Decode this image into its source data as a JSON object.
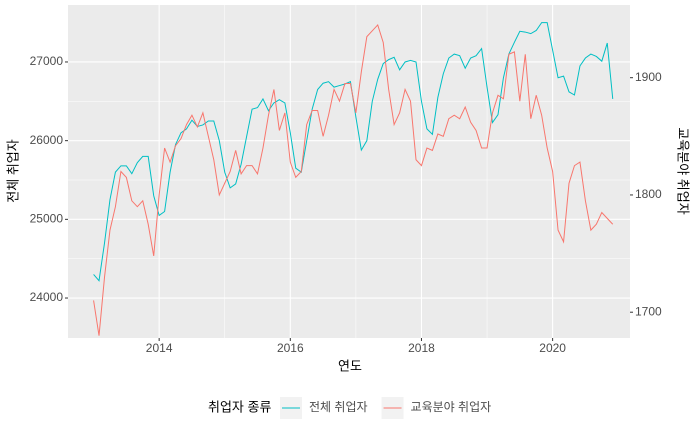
{
  "chart_data": {
    "type": "line",
    "x_label": "연도",
    "y_label": "전체 취업자",
    "y2_label": "교육분야 취업자",
    "legend_title": "취업자 종류",
    "legend": "bottom",
    "grid": true,
    "x": [
      2013,
      2013.083,
      2013.167,
      2013.25,
      2013.333,
      2013.417,
      2013.5,
      2013.583,
      2013.667,
      2013.75,
      2013.833,
      2013.917,
      2014,
      2014.083,
      2014.167,
      2014.25,
      2014.333,
      2014.417,
      2014.5,
      2014.583,
      2014.667,
      2014.75,
      2014.833,
      2014.917,
      2015,
      2015.083,
      2015.167,
      2015.25,
      2015.333,
      2015.417,
      2015.5,
      2015.583,
      2015.667,
      2015.75,
      2015.833,
      2015.917,
      2016,
      2016.083,
      2016.167,
      2016.25,
      2016.333,
      2016.417,
      2016.5,
      2016.583,
      2016.667,
      2016.75,
      2016.833,
      2016.917,
      2017,
      2017.083,
      2017.167,
      2017.25,
      2017.333,
      2017.417,
      2017.5,
      2017.583,
      2017.667,
      2017.75,
      2017.833,
      2017.917,
      2018,
      2018.083,
      2018.167,
      2018.25,
      2018.333,
      2018.417,
      2018.5,
      2018.583,
      2018.667,
      2018.75,
      2018.833,
      2018.917,
      2019,
      2019.083,
      2019.167,
      2019.25,
      2019.333,
      2019.417,
      2019.5,
      2019.583,
      2019.667,
      2019.75,
      2019.833,
      2019.917,
      2020,
      2020.083,
      2020.167,
      2020.25,
      2020.333,
      2020.417,
      2020.5,
      2020.583,
      2020.667,
      2020.75,
      2020.833,
      2020.917
    ],
    "xlim": [
      2012.61,
      2021.18
    ],
    "xticks": [
      2014,
      2016,
      2018,
      2020
    ],
    "ylim": [
      23492,
      27724
    ],
    "yticks": [
      24000,
      25000,
      26000,
      27000
    ],
    "y2lim": [
      1678,
      1962
    ],
    "y2ticks": [
      1700,
      1800,
      1900
    ],
    "series": [
      {
        "name": "전체 취업자",
        "color": "#00BFC4",
        "values": [
          24300,
          24220,
          24700,
          25250,
          25600,
          25680,
          25680,
          25580,
          25720,
          25800,
          25800,
          25300,
          25050,
          25100,
          25600,
          25950,
          26100,
          26150,
          26260,
          26180,
          26200,
          26250,
          26250,
          26000,
          25600,
          25400,
          25450,
          25700,
          26050,
          26400,
          26420,
          26530,
          26380,
          26480,
          26520,
          26480,
          26100,
          25650,
          25600,
          26000,
          26400,
          26650,
          26730,
          26750,
          26680,
          26700,
          26720,
          26750,
          26300,
          25880,
          26000,
          26500,
          26780,
          26980,
          27030,
          27060,
          26900,
          27000,
          27020,
          27000,
          26500,
          26150,
          26080,
          26550,
          26850,
          27050,
          27100,
          27080,
          26920,
          27050,
          27080,
          27170,
          26680,
          26230,
          26330,
          26800,
          27100,
          27250,
          27390,
          27380,
          27360,
          27400,
          27500,
          27500,
          27150,
          26800,
          26820,
          26620,
          26580,
          26950,
          27050,
          27100,
          27070,
          27010,
          27240,
          26530
        ]
      },
      {
        "name": "교육분야 취업자",
        "color": "#F8766D",
        "axis": "y2",
        "values": [
          1710,
          1680,
          1730,
          1770,
          1790,
          1820,
          1815,
          1795,
          1790,
          1795,
          1775,
          1748,
          1800,
          1840,
          1828,
          1842,
          1848,
          1860,
          1868,
          1858,
          1870,
          1850,
          1830,
          1800,
          1810,
          1820,
          1838,
          1818,
          1825,
          1825,
          1818,
          1840,
          1868,
          1890,
          1855,
          1870,
          1828,
          1815,
          1820,
          1860,
          1872,
          1872,
          1850,
          1868,
          1890,
          1880,
          1895,
          1895,
          1870,
          1905,
          1935,
          1940,
          1945,
          1930,
          1890,
          1860,
          1870,
          1890,
          1880,
          1830,
          1825,
          1840,
          1838,
          1852,
          1850,
          1865,
          1868,
          1865,
          1875,
          1862,
          1855,
          1840,
          1840,
          1870,
          1885,
          1882,
          1920,
          1922,
          1880,
          1920,
          1865,
          1885,
          1868,
          1840,
          1820,
          1770,
          1760,
          1810,
          1825,
          1828,
          1795,
          1770,
          1775,
          1785,
          1780,
          1775
        ]
      }
    ]
  }
}
